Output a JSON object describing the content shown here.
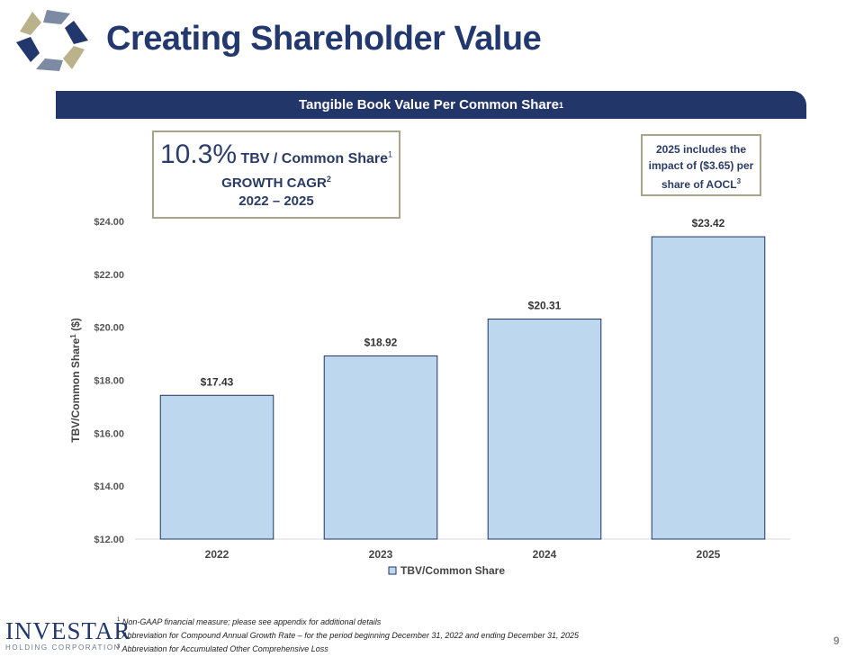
{
  "header": {
    "title": "Creating Shareholder Value",
    "banner_text": "Tangible Book Value Per Common Share",
    "banner_sup": "1"
  },
  "cagr_box": {
    "percent": "10.3%",
    "label": "TBV / Common Share",
    "label_sup": "1",
    "line2": "GROWTH CAGR",
    "line2_sup": "2",
    "line3": "2022 – 2025"
  },
  "note_box": {
    "line1": "2025 includes the",
    "line2": "impact of ($3.65) per",
    "line3": "share of AOCL",
    "line3_sup": "3"
  },
  "chart_data": {
    "type": "bar",
    "title": "",
    "categories": [
      "2022",
      "2023",
      "2024",
      "2025"
    ],
    "values": [
      17.43,
      18.92,
      20.31,
      23.42
    ],
    "data_labels": [
      "$17.43",
      "$18.92",
      "$20.31",
      "$23.42"
    ],
    "ylim": [
      12,
      24
    ],
    "y_ticks": [
      "$12.00",
      "$14.00",
      "$16.00",
      "$18.00",
      "$20.00",
      "$22.00",
      "$24.00"
    ],
    "ylabel": "TBV/Common Share",
    "ylabel_sup": "1",
    "ylabel_suffix": " ($)",
    "xlabel": "",
    "legend": "TBV/Common Share",
    "legend_position": "bottom",
    "colors": {
      "bar_fill": "#bdd7ee",
      "bar_stroke": "#1f3464"
    }
  },
  "footnotes": [
    {
      "sup": "1",
      "text": "Non-GAAP financial measure; please see appendix for additional details"
    },
    {
      "sup": "2",
      "text": "Abbreviation for Compound Annual Growth Rate – for the period beginning December 31, 2022 and ending December 31, 2025"
    },
    {
      "sup": "3",
      "text": "Abbreviation for Accumulated Other Comprehensive Loss"
    }
  ],
  "footer": {
    "company_name": "INVESTAR",
    "company_sub": "HOLDING CORPORATION",
    "page_number": "9"
  },
  "colors": {
    "brand_navy": "#23366a",
    "box_border": "#a9a58c"
  }
}
